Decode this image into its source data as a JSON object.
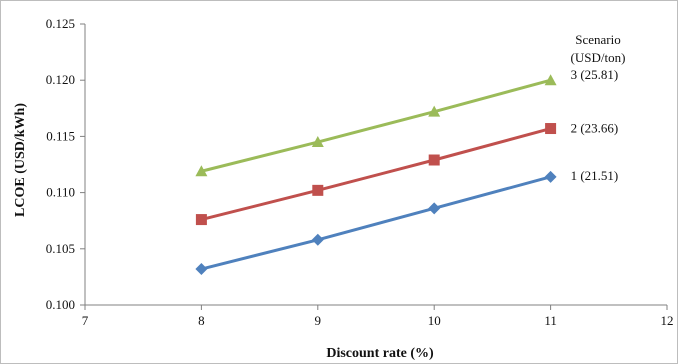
{
  "chart_data": {
    "type": "line",
    "xlabel": "Discount rate (%)",
    "ylabel": "LCOE (USD/kWh)",
    "xlim": [
      7,
      12
    ],
    "ylim": [
      0.1,
      0.125
    ],
    "x_ticks": [
      "7",
      "8",
      "9",
      "10",
      "11",
      "12"
    ],
    "y_ticks": [
      "0.100",
      "0.105",
      "0.110",
      "0.115",
      "0.120",
      "0.125"
    ],
    "x_tick_values": [
      7,
      8,
      9,
      10,
      11,
      12
    ],
    "y_tick_values": [
      0.1,
      0.105,
      0.11,
      0.115,
      0.12,
      0.125
    ],
    "grid": false,
    "legend_title_line1": "Scenario",
    "legend_title_line2": "(USD/ton)",
    "x": [
      8,
      9,
      10,
      11
    ],
    "series": [
      {
        "name": "3  (25.81)",
        "marker": "triangle",
        "color": "#9bbb59",
        "values": [
          0.1119,
          0.1145,
          0.1172,
          0.12
        ]
      },
      {
        "name": "2 (23.66)",
        "marker": "square",
        "color": "#c0504d",
        "values": [
          0.1076,
          0.1102,
          0.1129,
          0.1157
        ]
      },
      {
        "name": "1  (21.51)",
        "marker": "diamond",
        "color": "#4f81bd",
        "values": [
          0.1032,
          0.1058,
          0.1086,
          0.1114
        ]
      }
    ]
  }
}
